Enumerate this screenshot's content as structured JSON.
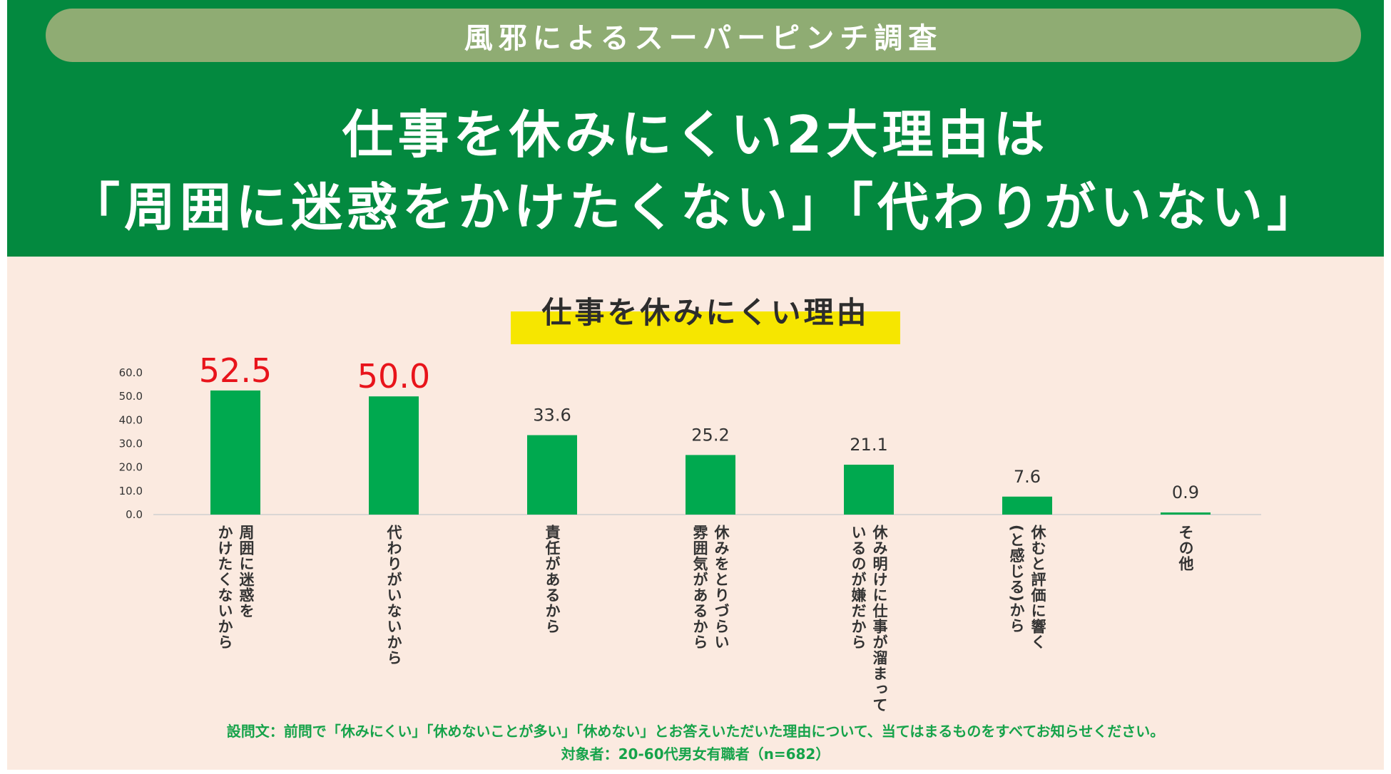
{
  "header": {
    "survey_title": "風邪によるスーパーピンチ調査",
    "headline_line1": "仕事を休みにくい2大理由は",
    "headline_line2": "「周囲に迷惑をかけたくない」「代わりがいない」"
  },
  "colors": {
    "header_bg": "#03893f",
    "pill_bg": "#8fac73",
    "content_bg": "#fbeae0",
    "bar": "#00a94f",
    "highlight_value": "#e8141b",
    "title_marker": "#f6e600",
    "note_text": "#16a34a"
  },
  "chart_data": {
    "type": "bar",
    "title": "仕事を休みにくい理由",
    "categories": [
      "周囲に迷惑を\nかけたくないから",
      "代わりがいないから",
      "責任があるから",
      "休みをとりづらい\n雰囲気があるから",
      "休み明けに仕事が溜まって\nいるのが嫌だから",
      "休むと評価に響く\n(と感じる)から",
      "その他"
    ],
    "values": [
      52.5,
      50.0,
      33.6,
      25.2,
      21.1,
      7.6,
      0.9
    ],
    "value_labels": [
      "52.5",
      "50.0",
      "33.6",
      "25.2",
      "21.1",
      "7.6",
      "0.9"
    ],
    "highlighted_indices": [
      0,
      1
    ],
    "ylim": [
      0,
      60
    ],
    "yticks": [
      "0.0",
      "10.0",
      "20.0",
      "30.0",
      "40.0",
      "50.0",
      "60.0"
    ],
    "xlabel": "",
    "ylabel": "",
    "grid": false,
    "legend": "none"
  },
  "notes": {
    "question": "設問文：前問で「休みにくい」「休めないことが多い」「休めない」とお答えいただいた理由について、当てはまるものをすべてお知らせください。",
    "target": "対象者：20-60代男女有職者（n=682）"
  }
}
